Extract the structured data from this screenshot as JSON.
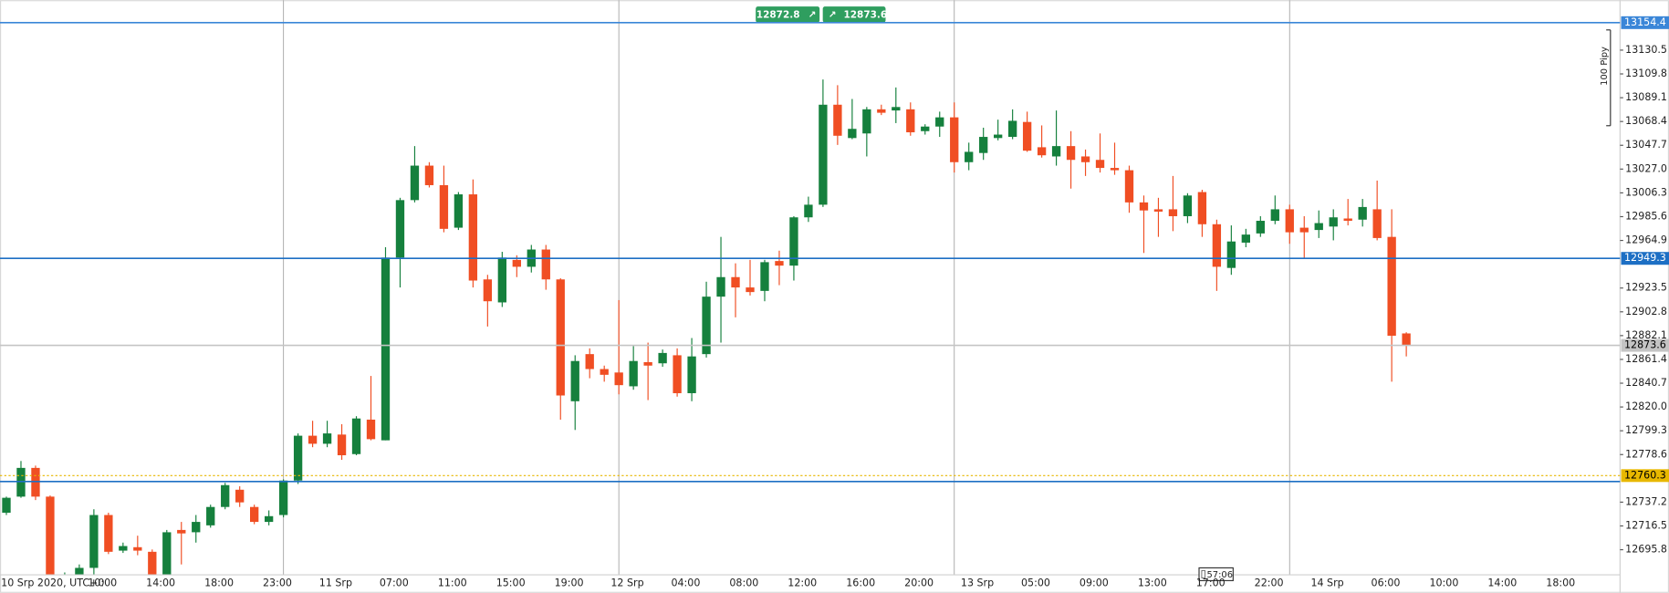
{
  "chart_data": {
    "type": "candlestick",
    "categories": [
      "10 Srp 2020, UTC+0",
      null,
      null,
      null,
      null,
      null,
      "10:00",
      null,
      null,
      null,
      "14:00",
      null,
      null,
      null,
      "18:00",
      null,
      null,
      null,
      "23:00",
      null,
      null,
      null,
      "11 Srp",
      null,
      null,
      null,
      "07:00",
      null,
      null,
      null,
      "11:00",
      null,
      null,
      null,
      "15:00",
      null,
      null,
      null,
      "19:00",
      null,
      null,
      null,
      "12 Srp",
      null,
      null,
      null,
      "04:00",
      null,
      null,
      null,
      "08:00",
      null,
      null,
      null,
      "12:00",
      null,
      null,
      null,
      "16:00",
      null,
      null,
      null,
      "20:00",
      null,
      null,
      null,
      "13 Srp",
      null,
      null,
      null,
      "05:00",
      null,
      null,
      null,
      "09:00",
      null,
      null,
      null,
      "13:00",
      null,
      null,
      null,
      "17:00",
      null,
      null,
      null,
      "22:00",
      null,
      null,
      null,
      "14 Srp",
      null,
      null,
      null,
      "06:00",
      null,
      null,
      null,
      "10:00",
      null,
      null,
      null,
      "14:00",
      null,
      null,
      null,
      "18:00",
      null,
      null,
      null,
      null
    ],
    "open": [
      12728,
      12742,
      12767,
      12742,
      12668,
      12674,
      12680,
      12726,
      12695,
      12698,
      12694,
      12674,
      12713,
      12711,
      12717,
      12733,
      12748,
      12733,
      12720,
      12726,
      12756,
      12795,
      12788,
      12796,
      12779,
      12809,
      12791,
      12950,
      13000,
      13030,
      13013,
      12976,
      13005,
      12931,
      12911,
      12948,
      12942,
      12957,
      12931,
      12825,
      12866,
      12853,
      12850,
      12838,
      12859,
      12858,
      12865,
      12832,
      12866,
      12916,
      12933,
      12924,
      12921,
      12947,
      12943,
      12985,
      12996,
      13083,
      13054,
      13058,
      13079,
      13078,
      13079,
      13060,
      13064,
      13072,
      13033,
      13041,
      13054,
      13055,
      13068,
      13046,
      13038,
      13047,
      13038,
      13035,
      13028,
      13026,
      12998,
      12992,
      12992,
      12986,
      13007,
      12979,
      12941,
      12963,
      12971,
      12982,
      12992,
      12976,
      12974,
      12977,
      12984,
      12983,
      12992,
      12968,
      12884,
      null,
      null,
      null,
      null,
      null,
      null,
      null,
      null,
      null,
      null,
      null,
      null,
      null,
      null
    ],
    "high": [
      12742,
      12773,
      12769,
      12743,
      12676,
      12683,
      12731,
      12728,
      12702,
      12708,
      12696,
      12713,
      12720,
      12726,
      12735,
      12754,
      12751,
      12735,
      12730,
      12757,
      12797,
      12808,
      12808,
      12805,
      12812,
      12847,
      12959,
      13002,
      13047,
      13033,
      13030,
      13007,
      13018,
      12935,
      12955,
      12952,
      12961,
      12961,
      12932,
      12865,
      12871,
      12856,
      12913,
      12873,
      12876,
      12870,
      12871,
      12880,
      12929,
      12968,
      12945,
      12948,
      12948,
      12956,
      12986,
      13003,
      13105,
      13100,
      13088,
      13081,
      13083,
      13098,
      13085,
      13066,
      13077,
      13085,
      13050,
      13063,
      13070,
      13079,
      13077,
      13065,
      13078,
      13060,
      13044,
      13058,
      13050,
      13030,
      13004,
      13002,
      13021,
      13006,
      13009,
      12983,
      12978,
      12975,
      12986,
      13004,
      12996,
      12986,
      12991,
      12992,
      13001,
      13001,
      13017,
      12992,
      12885,
      null,
      null,
      null,
      null,
      null,
      null,
      null,
      null,
      null,
      null,
      null,
      null,
      null,
      null
    ],
    "low": [
      12726,
      12741,
      12739,
      12669,
      12665,
      12669,
      12674,
      12692,
      12693,
      12691,
      12669,
      12674,
      12683,
      12702,
      12715,
      12731,
      12733,
      12718,
      12717,
      12724,
      12753,
      12785,
      12785,
      12774,
      12778,
      12791,
      12791,
      12924,
      12998,
      13011,
      12972,
      12974,
      12924,
      12890,
      12907,
      12933,
      12937,
      12922,
      12809,
      12800,
      12845,
      12842,
      12831,
      12835,
      12826,
      12855,
      12829,
      12825,
      12863,
      12876,
      12898,
      12917,
      12912,
      12926,
      12930,
      12981,
      12994,
      13048,
      13053,
      13038,
      13074,
      13067,
      13056,
      13057,
      13055,
      13024,
      13026,
      13035,
      13052,
      13053,
      13042,
      13037,
      13030,
      13010,
      13021,
      13024,
      13022,
      12989,
      12954,
      12968,
      12973,
      12980,
      12968,
      12921,
      12935,
      12959,
      12968,
      12979,
      12962,
      12949,
      12967,
      12965,
      12978,
      12977,
      12965,
      12842,
      12864,
      null,
      null,
      null,
      null,
      null,
      null,
      null,
      null,
      null,
      null,
      null,
      null,
      null,
      null
    ],
    "close": [
      12741,
      12767,
      12742,
      12669,
      12673,
      12680,
      12726,
      12694,
      12699,
      12695,
      12669,
      12711,
      12710,
      12720,
      12733,
      12752,
      12737,
      12720,
      12725,
      12756,
      12795,
      12788,
      12797,
      12778,
      12810,
      12792,
      12950,
      13000,
      13030,
      13013,
      12975,
      13005,
      12930,
      12912,
      12950,
      12942,
      12957,
      12931,
      12830,
      12860,
      12853,
      12848,
      12839,
      12860,
      12856,
      12867,
      12832,
      12864,
      12916,
      12933,
      12924,
      12920,
      12946,
      12943,
      12985,
      12996,
      13083,
      13056,
      13062,
      13079,
      13076,
      13081,
      13059,
      13064,
      13072,
      13033,
      13042,
      13055,
      13057,
      13069,
      13043,
      13039,
      13047,
      13035,
      13033,
      13028,
      13026,
      12998,
      12991,
      12990,
      12986,
      13004,
      12979,
      12942,
      12964,
      12970,
      12982,
      12992,
      12972,
      12972,
      12980,
      12985,
      12982,
      12994,
      12967,
      12882,
      12873.6,
      null,
      null,
      null,
      null,
      null,
      null,
      null,
      null,
      null,
      null,
      null,
      null,
      null,
      null
    ],
    "up_color": "#15803d",
    "down_color": "#f04e23",
    "ylim": [
      12674,
      13174
    ],
    "yticks": [
      13130.5,
      13109.8,
      13089.1,
      13068.4,
      13047.7,
      {
        "value": 13027,
        "label": "13027.0"
      },
      13006.3,
      12985.6,
      12964.9,
      12923.5,
      12902.8,
      12882.1,
      12861.4,
      12840.7,
      {
        "value": 12820,
        "label": "12820.0"
      },
      12799.3,
      12778.6,
      12737.2,
      12716.5,
      12695.8
    ],
    "day_separators": [
      19,
      42,
      65,
      88
    ],
    "levels": [
      {
        "value": 13154.4,
        "color": "#3a86d8",
        "labeled": true,
        "text_color": "#ffffff"
      },
      {
        "value": 12949.3,
        "color": "#1d6fc4",
        "labeled": true,
        "text_color": "#ffffff"
      },
      {
        "value": 12755.1,
        "color": "#1d6fc4",
        "labeled": false
      },
      {
        "value": 12760.3,
        "color": "#e8b800",
        "labeled": true,
        "dashed": true,
        "text_color": "#000000"
      },
      {
        "value": 12873.6,
        "color": "#c4c4c4",
        "labeled": true,
        "text_color": "#000000"
      }
    ],
    "bid": 12872.8,
    "ask": 12873.6,
    "countdown": "57:06",
    "range_label": "100 Pipy"
  }
}
